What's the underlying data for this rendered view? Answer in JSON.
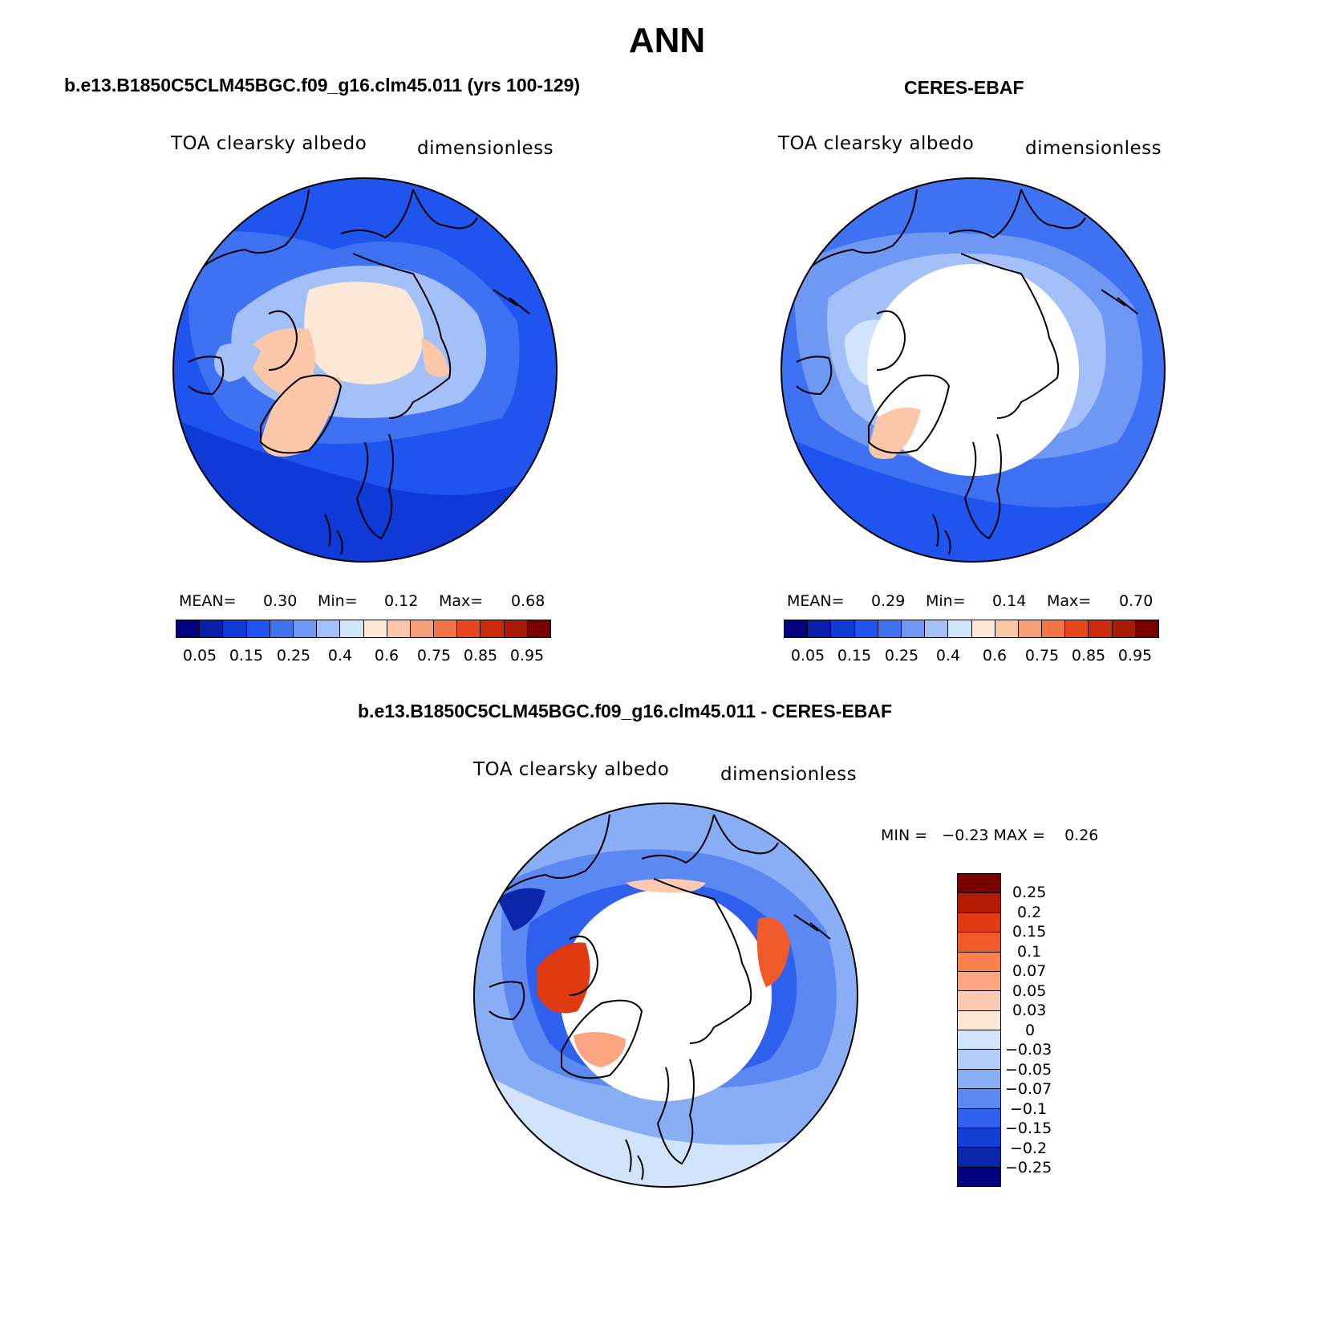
{
  "title": "ANN",
  "panels": [
    {
      "title": "b.e13.B1850C5CLM45BGC.f09_g16.clm45.011 (yrs 100-129)",
      "variable": "TOA clearsky albedo",
      "units": "dimensionless",
      "stats": {
        "mean_label": "MEAN=",
        "mean": "0.30",
        "min_label": "Min=",
        "min": "0.12",
        "max_label": "Max=",
        "max": "0.68"
      },
      "colorbar_ticks": [
        "0.05",
        "0.15",
        "0.25",
        "0.4",
        "0.6",
        "0.75",
        "0.85",
        "0.95"
      ]
    },
    {
      "title": "CERES-EBAF",
      "variable": "TOA clearsky albedo",
      "units": "dimensionless",
      "stats": {
        "mean_label": "MEAN=",
        "mean": "0.29",
        "min_label": "Min=",
        "min": "0.14",
        "max_label": "Max=",
        "max": "0.70"
      },
      "colorbar_ticks": [
        "0.05",
        "0.15",
        "0.25",
        "0.4",
        "0.6",
        "0.75",
        "0.85",
        "0.95"
      ]
    },
    {
      "title": "b.e13.B1850C5CLM45BGC.f09_g16.clm45.011 - CERES-EBAF",
      "variable": "TOA clearsky albedo",
      "units": "dimensionless",
      "stats_line": "MIN =   -0.23 MAX =    0.26",
      "colorbar_ticks": [
        "0.25",
        "0.2",
        "0.15",
        "0.1",
        "0.07",
        "0.05",
        "0.03",
        "0",
        "-0.03",
        "-0.05",
        "-0.07",
        "-0.1",
        "-0.15",
        "-0.2",
        "-0.25"
      ]
    }
  ],
  "colors": {
    "abs_scale": [
      "#00007f",
      "#0a1fa8",
      "#0f3ad6",
      "#1f55ee",
      "#3f72f2",
      "#6f98f4",
      "#a4c0f8",
      "#d2e4fb",
      "#fde8d6",
      "#fbc7a8",
      "#f8a07b",
      "#f47446",
      "#e8471d",
      "#cc2b0b",
      "#a81a04",
      "#7a0000"
    ],
    "diff_scale": [
      "#7a0000",
      "#b31c03",
      "#e03b10",
      "#f0592a",
      "#f7814f",
      "#f9a57f",
      "#fccab0",
      "#fde8d6",
      "#d2e4fb",
      "#b4cdf8",
      "#8aaef5",
      "#5c88f2",
      "#2f60ee",
      "#123fd4",
      "#0a27aa",
      "#000080"
    ],
    "land_outline": "#000000"
  },
  "chart_data": [
    {
      "type": "heatmap",
      "projection": "north polar stereographic",
      "title": "b.e13.B1850C5CLM45BGC.f09_g16.clm45.011 (yrs 100-129)",
      "field": "TOA clearsky albedo",
      "units": "dimensionless",
      "mean": 0.3,
      "min": 0.12,
      "max": 0.68,
      "levels": [
        0.05,
        0.1,
        0.15,
        0.2,
        0.25,
        0.3,
        0.4,
        0.5,
        0.6,
        0.7,
        0.75,
        0.8,
        0.85,
        0.9,
        0.95
      ]
    },
    {
      "type": "heatmap",
      "projection": "north polar stereographic",
      "title": "CERES-EBAF",
      "field": "TOA clearsky albedo",
      "units": "dimensionless",
      "mean": 0.29,
      "min": 0.14,
      "max": 0.7,
      "levels": [
        0.05,
        0.1,
        0.15,
        0.2,
        0.25,
        0.3,
        0.4,
        0.5,
        0.6,
        0.7,
        0.75,
        0.8,
        0.85,
        0.9,
        0.95
      ]
    },
    {
      "type": "heatmap",
      "projection": "north polar stereographic",
      "title": "b.e13.B1850C5CLM45BGC.f09_g16.clm45.011 - CERES-EBAF",
      "field": "TOA clearsky albedo",
      "units": "dimensionless",
      "min": -0.23,
      "max": 0.26,
      "levels": [
        -0.25,
        -0.2,
        -0.15,
        -0.1,
        -0.07,
        -0.05,
        -0.03,
        0,
        0.03,
        0.05,
        0.07,
        0.1,
        0.15,
        0.2,
        0.25
      ]
    }
  ]
}
